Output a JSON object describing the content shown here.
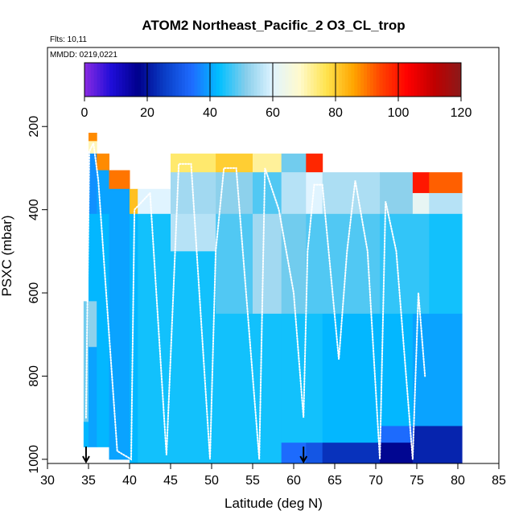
{
  "chart_data": {
    "type": "heatmap",
    "title": "ATOM2 Northeast_Pacific_2 O3_CL_trop",
    "flights_label": "Flts: 10,11",
    "date_label": "MMDD: 0219,0221",
    "xlabel": "Latitude (deg N)",
    "ylabel": "PSXC (mbar)",
    "xlim": [
      30,
      85
    ],
    "ylim": [
      1010,
      10
    ],
    "x_ticks": [
      30,
      35,
      40,
      45,
      50,
      55,
      60,
      65,
      70,
      75,
      80,
      85
    ],
    "y_ticks": [
      200,
      400,
      600,
      800,
      1000
    ],
    "colorbar": {
      "min": 0,
      "max": 120,
      "ticks": [
        0,
        20,
        40,
        60,
        80,
        100,
        120
      ],
      "colors": [
        "#8a2be2",
        "#1e0dd8",
        "#00008b",
        "#0a3fc8",
        "#1e6cff",
        "#00bfff",
        "#87ceeb",
        "#e0f4ff",
        "#fffacd",
        "#ffe34d",
        "#ffa500",
        "#ff4500",
        "#ff0000",
        "#c00000",
        "#8b1a1a"
      ]
    },
    "flight_markers_lat": [
      34.7,
      61.2
    ],
    "columns": [
      {
        "x0": 34.4,
        "x1": 35.0,
        "cells": [
          [
            620,
            910,
            50
          ],
          [
            910,
            970,
            42
          ]
        ]
      },
      {
        "x0": 35.0,
        "x1": 36.0,
        "cells": [
          [
            215,
            235,
            88
          ],
          [
            235,
            265,
            70
          ],
          [
            265,
            410,
            38
          ],
          [
            410,
            620,
            42
          ],
          [
            620,
            730,
            52
          ],
          [
            730,
            970,
            40
          ]
        ]
      },
      {
        "x0": 36.0,
        "x1": 37.5,
        "cells": [
          [
            265,
            305,
            88
          ],
          [
            305,
            410,
            40
          ],
          [
            410,
            970,
            42
          ]
        ]
      },
      {
        "x0": 37.5,
        "x1": 40.0,
        "cells": [
          [
            305,
            350,
            90
          ],
          [
            350,
            410,
            40
          ],
          [
            410,
            1000,
            40
          ]
        ]
      },
      {
        "x0": 40.0,
        "x1": 41.0,
        "cells": [
          [
            350,
            410,
            82
          ],
          [
            410,
            1010,
            42
          ]
        ]
      },
      {
        "x0": 41.0,
        "x1": 45.0,
        "cells": [
          [
            350,
            410,
            60
          ],
          [
            410,
            1010,
            44
          ]
        ]
      },
      {
        "x0": 45.0,
        "x1": 50.5,
        "cells": [
          [
            265,
            310,
            75
          ],
          [
            310,
            410,
            54
          ],
          [
            410,
            500,
            56
          ],
          [
            500,
            1010,
            44
          ]
        ]
      },
      {
        "x0": 50.5,
        "x1": 55.0,
        "cells": [
          [
            265,
            310,
            80
          ],
          [
            310,
            410,
            52
          ],
          [
            410,
            650,
            48
          ],
          [
            650,
            1010,
            44
          ]
        ]
      },
      {
        "x0": 55.0,
        "x1": 58.5,
        "cells": [
          [
            265,
            310,
            72
          ],
          [
            310,
            410,
            48
          ],
          [
            410,
            650,
            54
          ],
          [
            650,
            1010,
            44
          ]
        ]
      },
      {
        "x0": 58.5,
        "x1": 61.5,
        "cells": [
          [
            265,
            310,
            50
          ],
          [
            310,
            410,
            56
          ],
          [
            410,
            650,
            50
          ],
          [
            650,
            960,
            44
          ],
          [
            960,
            1010,
            34
          ]
        ]
      },
      {
        "x0": 61.5,
        "x1": 63.5,
        "cells": [
          [
            265,
            310,
            98
          ],
          [
            310,
            410,
            60
          ],
          [
            410,
            650,
            48
          ],
          [
            650,
            960,
            44
          ],
          [
            960,
            1010,
            30
          ]
        ]
      },
      {
        "x0": 63.5,
        "x1": 70.5,
        "cells": [
          [
            310,
            410,
            55
          ],
          [
            410,
            650,
            48
          ],
          [
            650,
            960,
            42
          ],
          [
            960,
            1010,
            24
          ]
        ]
      },
      {
        "x0": 70.5,
        "x1": 74.5,
        "cells": [
          [
            310,
            410,
            52
          ],
          [
            410,
            650,
            46
          ],
          [
            650,
            920,
            42
          ],
          [
            920,
            960,
            34
          ],
          [
            960,
            1010,
            18
          ]
        ]
      },
      {
        "x0": 74.5,
        "x1": 76.5,
        "cells": [
          [
            310,
            360,
            100
          ],
          [
            360,
            410,
            62
          ],
          [
            410,
            650,
            46
          ],
          [
            650,
            920,
            40
          ],
          [
            920,
            1010,
            22
          ]
        ]
      },
      {
        "x0": 76.5,
        "x1": 80.5,
        "cells": [
          [
            310,
            360,
            92
          ],
          [
            360,
            410,
            56
          ],
          [
            410,
            650,
            44
          ],
          [
            650,
            920,
            40
          ],
          [
            920,
            1010,
            22
          ]
        ]
      }
    ],
    "flight_track": [
      [
        34.7,
        900
      ],
      [
        35.1,
        260
      ],
      [
        35.6,
        240
      ],
      [
        36.2,
        330
      ],
      [
        38.5,
        980
      ],
      [
        40.2,
        1000
      ],
      [
        40.6,
        400
      ],
      [
        42.5,
        360
      ],
      [
        44.5,
        990
      ],
      [
        46,
        290
      ],
      [
        47.5,
        290
      ],
      [
        49.8,
        1000
      ],
      [
        50.5,
        500
      ],
      [
        51.5,
        300
      ],
      [
        53,
        300
      ],
      [
        55.8,
        1000
      ],
      [
        56.5,
        300
      ],
      [
        58.2,
        400
      ],
      [
        60,
        600
      ],
      [
        61.2,
        900
      ],
      [
        61.7,
        500
      ],
      [
        62.5,
        340
      ],
      [
        63.5,
        340
      ],
      [
        65.5,
        760
      ],
      [
        66.5,
        500
      ],
      [
        67.5,
        330
      ],
      [
        69,
        500
      ],
      [
        70.5,
        1000
      ],
      [
        71.2,
        380
      ],
      [
        72.5,
        500
      ],
      [
        74.5,
        1000
      ],
      [
        75.2,
        600
      ],
      [
        76,
        800
      ]
    ]
  }
}
